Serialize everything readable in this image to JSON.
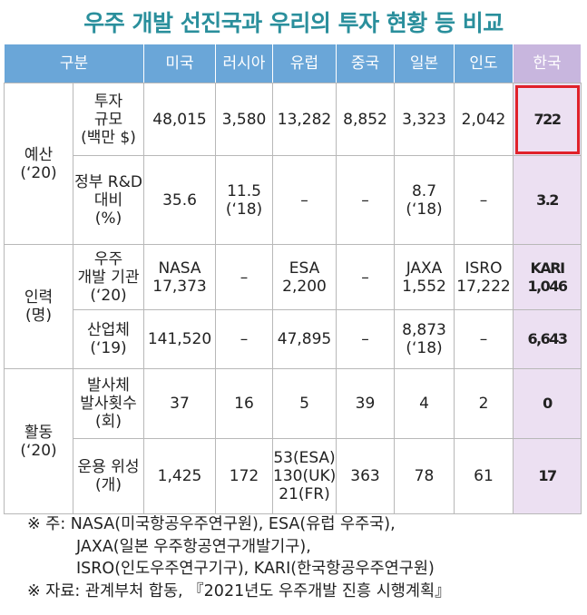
{
  "title": "우주 개발 선진국과 우리의 투자 현황 등 비교",
  "table": {
    "header": [
      "구분",
      "미국",
      "러시아",
      "유럽",
      "중국",
      "일본",
      "인도",
      "한국"
    ],
    "groups": [
      {
        "label": "예산\n(‘20)",
        "rows": [
          {
            "label": "투자\n규모\n(백만 $)",
            "cells": [
              "48,015",
              "3,580",
              "13,282",
              "8,852",
              "3,323",
              "2,042",
              "722"
            ]
          },
          {
            "label": "정부 R&D\n대비\n(%)",
            "cells": [
              "35.6",
              "11.5\n(‘18)",
              "–",
              "–",
              "8.7\n(‘18)",
              "–",
              "3.2"
            ]
          }
        ]
      },
      {
        "label": "인력\n(명)",
        "rows": [
          {
            "label": "우주\n개발 기관\n(‘20)",
            "cells": [
              "NASA\n17,373",
              "–",
              "ESA\n2,200",
              "–",
              "JAXA\n1,552",
              "ISRO\n17,222",
              "KARI\n1,046"
            ]
          },
          {
            "label": "산업체\n(‘19)",
            "cells": [
              "141,520",
              "–",
              "47,895",
              "–",
              "8,873\n(‘18)",
              "–",
              "6,643"
            ]
          }
        ]
      },
      {
        "label": "활동\n(‘20)",
        "rows": [
          {
            "label": "발사체\n발사횟수\n(회)",
            "cells": [
              "37",
              "16",
              "5",
              "39",
              "4",
              "2",
              "0"
            ]
          },
          {
            "label": "운용 위성\n(개)",
            "cells": [
              "1,425",
              "172",
              "53(ESA)\n130(UK)\n21(FR)",
              "363",
              "78",
              "61",
              "17"
            ]
          }
        ]
      }
    ]
  },
  "notes": [
    "※ 주: NASA(미국항공우주연구원), ESA(유럽 우주국),",
    "JAXA(일본 우주항공연구개발기구),",
    "ISRO(인도우주연구기구), KARI(한국항공우주연구원)",
    "※ 자료: 관계부처 합동, 『2021년도 우주개발 진흥 시행계획』"
  ]
}
